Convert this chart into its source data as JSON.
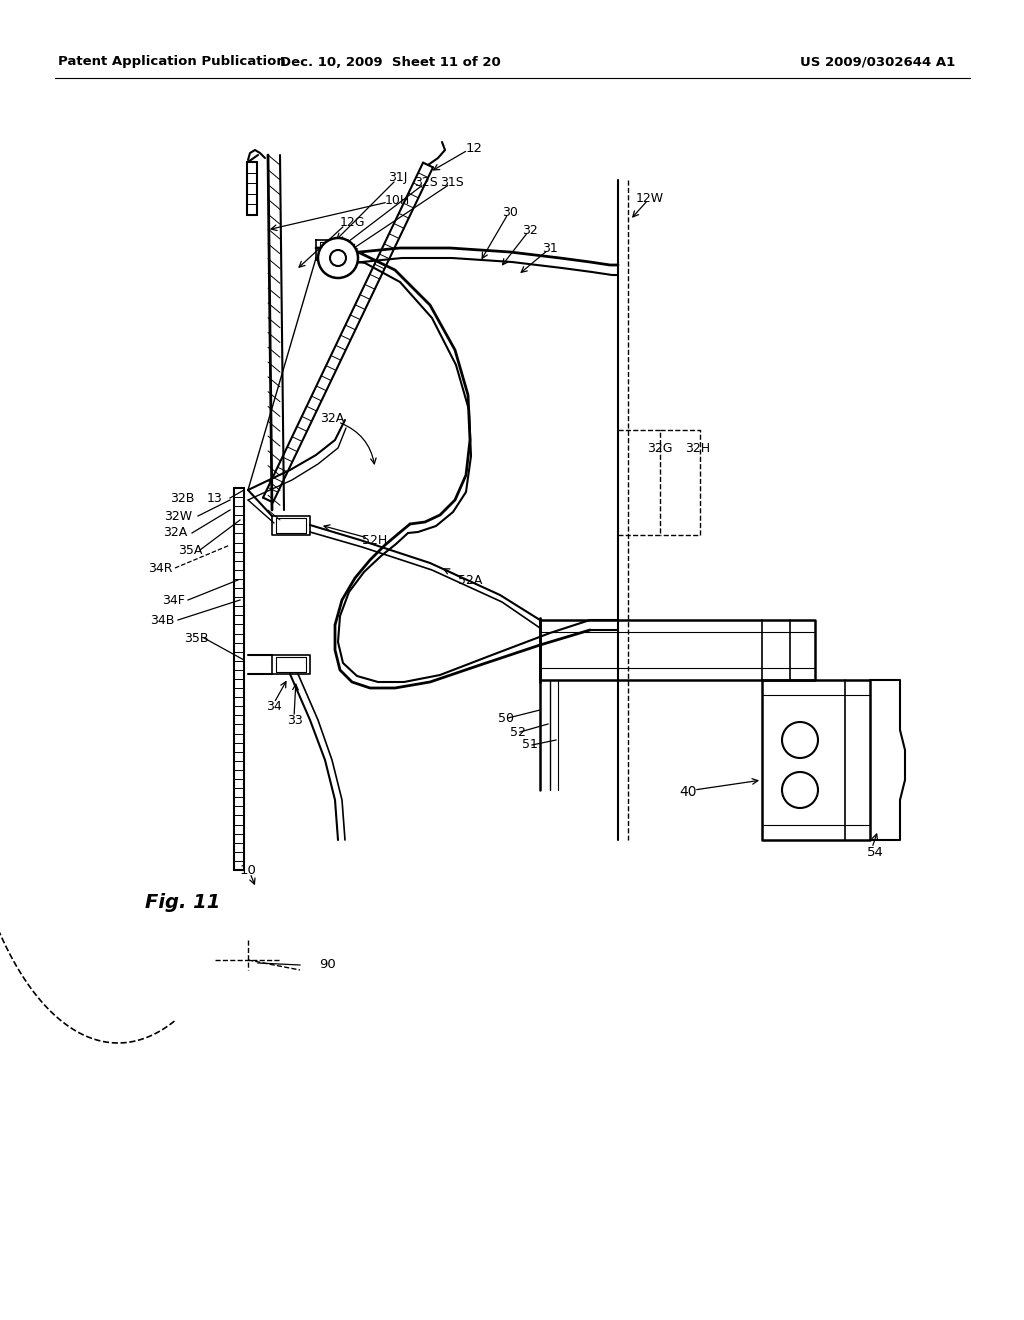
{
  "header_left": "Patent Application Publication",
  "header_mid": "Dec. 10, 2009  Sheet 11 of 20",
  "header_right": "US 2009/0302644 A1",
  "fig_label": "Fig. 11",
  "background": "#ffffff",
  "line_color": "#000000"
}
